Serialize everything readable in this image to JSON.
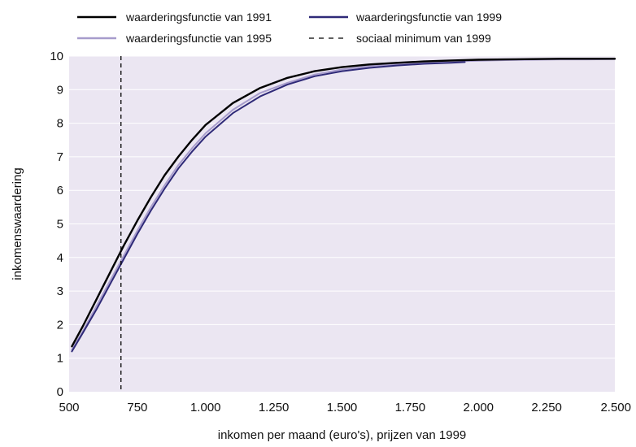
{
  "chart_data": {
    "type": "line",
    "title": "",
    "xlabel": "inkomen per maand (euro's), prijzen van 1999",
    "ylabel": "inkomenswaardering",
    "xlim": [
      500,
      2500
    ],
    "ylim": [
      0,
      10
    ],
    "x_tick_values": [
      500,
      750,
      1000,
      1250,
      1500,
      1750,
      2000,
      2250,
      2500
    ],
    "x_tick_labels": [
      "500",
      "750",
      "1.000",
      "1.250",
      "1.500",
      "1.750",
      "2.000",
      "2.250",
      "2.500"
    ],
    "y_tick_values": [
      0,
      1,
      2,
      3,
      4,
      5,
      6,
      7,
      8,
      9,
      10
    ],
    "y_tick_labels": [
      "0",
      "1",
      "2",
      "3",
      "4",
      "5",
      "6",
      "7",
      "8",
      "9",
      "10"
    ],
    "grid": "horizontal",
    "legend_position": "top",
    "plot_background": "#ebe6f2",
    "series": [
      {
        "name": "waarderingsfunctie van 1991",
        "color": "#000000",
        "dash": "solid",
        "x": [
          510,
          550,
          600,
          650,
          700,
          750,
          800,
          850,
          900,
          950,
          1000,
          1100,
          1200,
          1300,
          1400,
          1500,
          1600,
          1700,
          1800,
          1900,
          2000,
          2100,
          2200,
          2300,
          2400,
          2500
        ],
        "y": [
          1.35,
          1.95,
          2.75,
          3.55,
          4.35,
          5.1,
          5.8,
          6.45,
          7.0,
          7.5,
          7.95,
          8.6,
          9.05,
          9.35,
          9.55,
          9.67,
          9.75,
          9.8,
          9.84,
          9.87,
          9.89,
          9.9,
          9.91,
          9.92,
          9.92,
          9.92
        ]
      },
      {
        "name": "waarderingsfunctie van 1995",
        "color": "#a79ccc",
        "dash": "solid",
        "x": [
          510,
          550,
          600,
          650,
          700,
          750,
          800,
          850,
          900,
          950,
          1000,
          1100,
          1200,
          1300,
          1400,
          1500,
          1600,
          1700,
          1800,
          1900,
          2000,
          2100,
          2200,
          2300,
          2400,
          2500
        ],
        "y": [
          1.25,
          1.8,
          2.55,
          3.3,
          4.05,
          4.8,
          5.5,
          6.15,
          6.75,
          7.25,
          7.7,
          8.4,
          8.9,
          9.2,
          9.45,
          9.6,
          9.7,
          9.76,
          9.81,
          9.84,
          9.86,
          9.88,
          9.89,
          9.9,
          9.9,
          9.91
        ]
      },
      {
        "name": "waarderingsfunctie van 1999",
        "color": "#2f2a78",
        "dash": "solid",
        "x": [
          510,
          550,
          600,
          650,
          700,
          750,
          800,
          850,
          900,
          950,
          1000,
          1100,
          1200,
          1300,
          1400,
          1500,
          1600,
          1700,
          1800,
          1900,
          1950
        ],
        "y": [
          1.2,
          1.75,
          2.45,
          3.2,
          3.95,
          4.7,
          5.4,
          6.05,
          6.65,
          7.15,
          7.6,
          8.3,
          8.8,
          9.15,
          9.4,
          9.55,
          9.65,
          9.72,
          9.77,
          9.8,
          9.82
        ]
      }
    ],
    "reference_lines": [
      {
        "name": "sociaal minimum van 1999",
        "orientation": "vertical",
        "x": 690,
        "color": "#000000",
        "dash": "dashed"
      }
    ],
    "legend": [
      {
        "label": "waarderingsfunctie van 1991",
        "color": "#000000",
        "dash": "solid"
      },
      {
        "label": "waarderingsfunctie van 1999",
        "color": "#2f2a78",
        "dash": "solid"
      },
      {
        "label": "waarderingsfunctie van 1995",
        "color": "#a79ccc",
        "dash": "solid"
      },
      {
        "label": "sociaal minimum van 1999",
        "color": "#000000",
        "dash": "dashed"
      }
    ]
  }
}
